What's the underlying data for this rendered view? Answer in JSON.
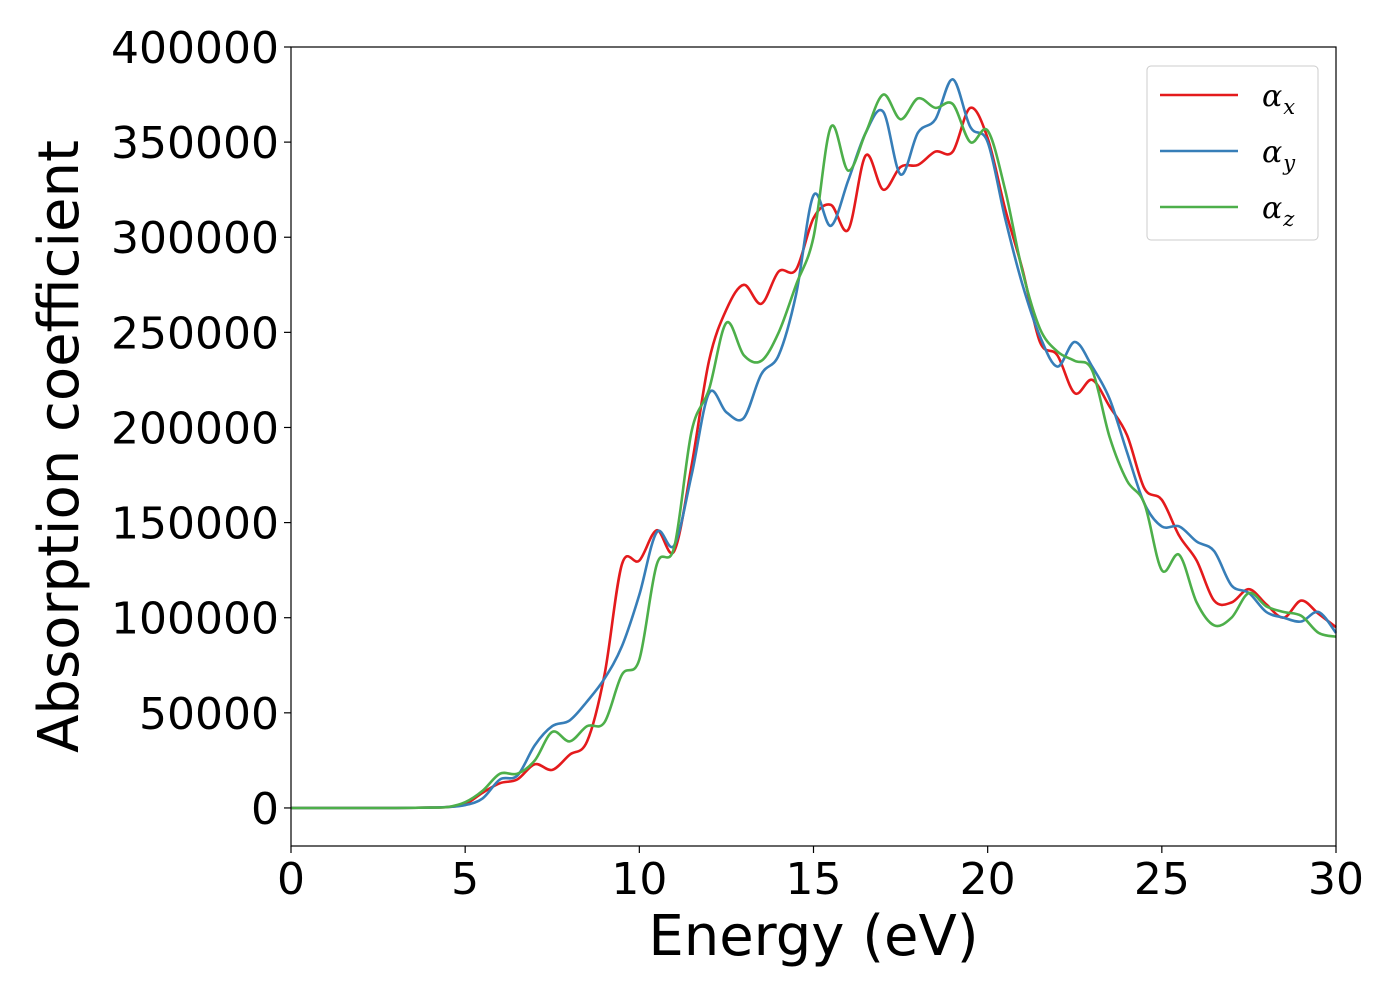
{
  "chart_data": {
    "type": "line",
    "xlabel": "Energy (eV)",
    "ylabel": "Absorption coefficient",
    "xlim": [
      0,
      30
    ],
    "ylim": [
      -20000,
      400000
    ],
    "xticks": [
      0,
      5,
      10,
      15,
      20,
      25,
      30
    ],
    "yticks": [
      0,
      50000,
      100000,
      150000,
      200000,
      250000,
      300000,
      350000,
      400000
    ],
    "grid": false,
    "legend_position": "top-right",
    "x": [
      0,
      1,
      2,
      3,
      4,
      4.5,
      5,
      5.5,
      6,
      6.5,
      7,
      7.5,
      8,
      8.5,
      9,
      9.5,
      10,
      10.5,
      11,
      11.5,
      12,
      12.5,
      13,
      13.5,
      14,
      14.5,
      15,
      15.5,
      16,
      16.5,
      17,
      17.5,
      18,
      18.5,
      19,
      19.5,
      20,
      20.5,
      21,
      21.5,
      22,
      22.5,
      23,
      23.5,
      24,
      24.5,
      25,
      25.5,
      26,
      26.5,
      27,
      27.5,
      28,
      28.5,
      29,
      29.5,
      30
    ],
    "series": [
      {
        "symbol": "α",
        "subscript": "x",
        "color": "#e41a1c",
        "values": [
          0,
          0,
          0,
          0,
          200,
          500,
          2000,
          8000,
          13000,
          15000,
          23000,
          20000,
          28000,
          35000,
          70000,
          128000,
          130000,
          146000,
          135000,
          180000,
          235000,
          262000,
          275000,
          265000,
          282000,
          283000,
          310000,
          317000,
          304000,
          343000,
          325000,
          337000,
          338000,
          345000,
          345000,
          368000,
          352000,
          315000,
          283000,
          245000,
          238000,
          218000,
          225000,
          211000,
          196000,
          168000,
          162000,
          143000,
          130000,
          109000,
          108000,
          115000,
          107000,
          100000,
          109000,
          102000,
          95000
        ]
      },
      {
        "symbol": "α",
        "subscript": "y",
        "color": "#377eb8",
        "values": [
          0,
          0,
          0,
          0,
          200,
          500,
          1500,
          5000,
          15000,
          17000,
          33000,
          43000,
          46000,
          56000,
          68000,
          85000,
          112000,
          145000,
          138000,
          175000,
          218000,
          208000,
          205000,
          228000,
          238000,
          270000,
          322000,
          306000,
          330000,
          355000,
          366000,
          333000,
          355000,
          362000,
          383000,
          358000,
          350000,
          310000,
          275000,
          248000,
          232000,
          245000,
          232000,
          215000,
          187000,
          160000,
          148000,
          148000,
          140000,
          135000,
          117000,
          113000,
          103000,
          100000,
          98000,
          103000,
          92000
        ]
      },
      {
        "symbol": "α",
        "subscript": "z",
        "color": "#4daf4a",
        "values": [
          0,
          0,
          0,
          0,
          200,
          500,
          3000,
          9000,
          18000,
          18000,
          25000,
          40000,
          35000,
          43000,
          45000,
          70000,
          78000,
          128000,
          137000,
          198000,
          220000,
          255000,
          238000,
          235000,
          250000,
          275000,
          300000,
          358000,
          335000,
          355000,
          375000,
          362000,
          373000,
          368000,
          370000,
          350000,
          356000,
          325000,
          282000,
          252000,
          240000,
          235000,
          230000,
          195000,
          172000,
          160000,
          125000,
          133000,
          108000,
          96000,
          100000,
          113000,
          106000,
          103000,
          101000,
          92000,
          90000
        ]
      }
    ]
  }
}
